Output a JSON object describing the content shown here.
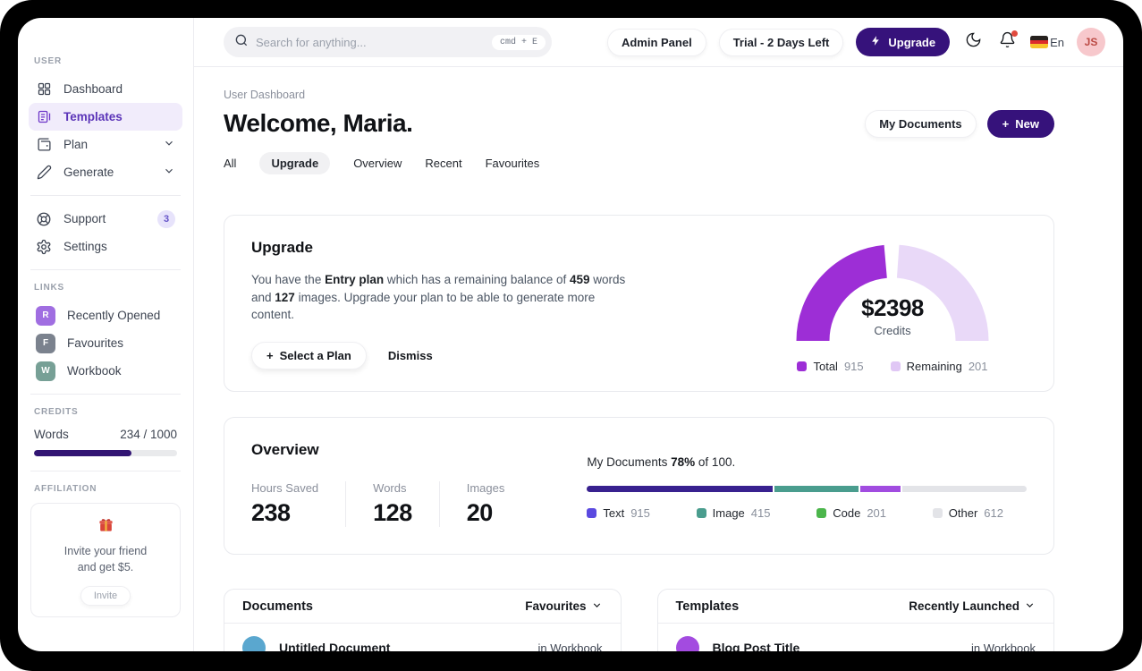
{
  "topbar": {
    "search": {
      "placeholder": "Search for anything...",
      "shortcut": "cmd + E"
    },
    "admin_panel": "Admin Panel",
    "trial": "Trial - 2 Days Left",
    "upgrade": "Upgrade",
    "language": "En",
    "avatar_initials": "JS",
    "notification_dot_color": "#e14a3e"
  },
  "sidebar": {
    "user_label": "USER",
    "items": [
      {
        "label": "Dashboard",
        "icon": "grid-icon"
      },
      {
        "label": "Templates",
        "icon": "templates-icon",
        "active": true
      },
      {
        "label": "Plan",
        "icon": "wallet-icon",
        "expandable": true
      },
      {
        "label": "Generate",
        "icon": "pencil-icon",
        "expandable": true
      }
    ],
    "support_label": "Support",
    "support_badge": "3",
    "settings_label": "Settings",
    "links_label": "LINKS",
    "links": [
      {
        "initial": "R",
        "label": "Recently Opened",
        "color": "#a06ee1"
      },
      {
        "initial": "F",
        "label": "Favourites",
        "color": "#7b828e"
      },
      {
        "initial": "W",
        "label": "Workbook",
        "color": "#77a096"
      }
    ],
    "credits_label": "CREDITS",
    "credits": {
      "label": "Words",
      "value": "234 / 1000",
      "percent": 68,
      "fill_color": "#321573"
    },
    "affiliation_label": "AFFILIATION",
    "affiliation": {
      "line1": "Invite your friend",
      "line2": "and get $5.",
      "button": "Invite",
      "icon": "gift-icon"
    }
  },
  "header": {
    "breadcrumb": "User Dashboard",
    "title": "Welcome, Maria.",
    "tabs": [
      "All",
      "Upgrade",
      "Overview",
      "Recent",
      "Favourites"
    ],
    "active_tab": "Upgrade",
    "my_documents_button": "My Documents",
    "new_button": "New"
  },
  "upgrade_card": {
    "title": "Upgrade",
    "body_segments": [
      {
        "text": "You have the ",
        "bold": false
      },
      {
        "text": "Entry plan",
        "bold": true
      },
      {
        "text": " which has a remaining balance of ",
        "bold": false
      },
      {
        "text": "459",
        "bold": true
      },
      {
        "text": " words and ",
        "bold": false
      },
      {
        "text": "127",
        "bold": true
      },
      {
        "text": " images. Upgrade your plan to be able to generate more content.",
        "bold": false
      }
    ],
    "select_plan_button": "Select a Plan",
    "dismiss_button": "Dismiss"
  },
  "overview_card": {
    "title": "Overview",
    "stats": [
      {
        "label": "Hours Saved",
        "value": "238"
      },
      {
        "label": "Words",
        "value": "128"
      },
      {
        "label": "Images",
        "value": "20"
      }
    ],
    "progress_label": {
      "prefix": "My Documents ",
      "percent": "78%",
      "suffix": " of 100."
    }
  },
  "chart_data": [
    {
      "type": "pie",
      "layout": "semicircle-gauge",
      "title": "$2398",
      "subtitle": "Credits",
      "legend_position": "bottom",
      "series": [
        {
          "name": "Total",
          "value": 915,
          "color": "#9d2ed6"
        },
        {
          "name": "Remaining",
          "value": 201,
          "color": "#e9d9f8"
        }
      ]
    },
    {
      "type": "bar",
      "layout": "stacked-horizontal",
      "title": "My Documents 78% of 100.",
      "legend_position": "bottom",
      "series": [
        {
          "name": "Text",
          "value": 915,
          "color": "#38218f",
          "legend_color": "#5b4ae0"
        },
        {
          "name": "Image",
          "value": 415,
          "color": "#4a9d8e",
          "legend_color": "#4a9d8e"
        },
        {
          "name": "Code",
          "value": 201,
          "color": "#a14ce0",
          "legend_color": "#4cb64c"
        },
        {
          "name": "Other",
          "value": 612,
          "color": "#e3e4e8",
          "legend_color": "#e3e4e8"
        }
      ]
    }
  ],
  "documents_card": {
    "title": "Documents",
    "filter": "Favourites",
    "rows": [
      {
        "name": "Untitled Document",
        "location": "in Workbook",
        "avatar_color": "#5aa7cf"
      }
    ]
  },
  "templates_card": {
    "title": "Templates",
    "filter": "Recently Launched",
    "rows": [
      {
        "name": "Blog Post Title",
        "location": "in Workbook",
        "avatar_color": "#a34be0"
      }
    ]
  }
}
